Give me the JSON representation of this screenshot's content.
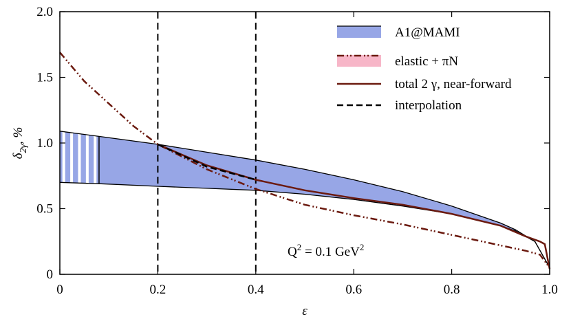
{
  "chart_data": {
    "type": "line",
    "xlabel": "ε",
    "ylabel": {
      "symbol": "δ",
      "subscript": "2γ",
      "unit": ", %"
    },
    "annotation": [
      "Q",
      "2",
      " = 0.1 GeV",
      "2"
    ],
    "xlim": [
      0,
      1
    ],
    "ylim": [
      0,
      2
    ],
    "xticks": [
      0,
      0.2,
      0.4,
      0.6,
      0.8,
      {
        "value": 1,
        "label": "1.0"
      }
    ],
    "yticks": [
      0,
      0.5,
      {
        "value": 1,
        "label": "1.0"
      },
      1.5,
      {
        "value": 2,
        "label": "2.0"
      }
    ],
    "vlines": [
      0.2,
      0.4
    ],
    "legend": "upper right",
    "series": [
      {
        "name": "A1@MAMI",
        "kind": "band",
        "color": "#97a6e6",
        "x": [
          0,
          0.08,
          0.2,
          0.3,
          0.4,
          0.5,
          0.6,
          0.7,
          0.8,
          0.9,
          0.93,
          0.97,
          1.0
        ],
        "upper": [
          1.09,
          1.05,
          0.99,
          0.93,
          0.87,
          0.8,
          0.72,
          0.63,
          0.52,
          0.39,
          0.34,
          0.25,
          0.05
        ],
        "lower": [
          0.7,
          0.69,
          0.67,
          0.655,
          0.64,
          0.61,
          0.57,
          0.52,
          0.46,
          0.37,
          0.33,
          0.25,
          0.05
        ]
      },
      {
        "name": "elastic + πN",
        "kind": "line",
        "color": "#6b1a0f",
        "dash": "10 4 2 3 2 4",
        "legend_fill": "#f7b6c8",
        "x": [
          0,
          0.05,
          0.1,
          0.15,
          0.2,
          0.3,
          0.4,
          0.5,
          0.6,
          0.7,
          0.8,
          0.9,
          0.95,
          0.98,
          1.0
        ],
        "values": [
          1.69,
          1.47,
          1.3,
          1.13,
          0.99,
          0.8,
          0.65,
          0.53,
          0.45,
          0.38,
          0.3,
          0.22,
          0.18,
          0.15,
          0.05
        ]
      },
      {
        "name": "total 2 γ, near-forward",
        "kind": "line",
        "color": "#6b1a0f",
        "dash": "none",
        "x": [
          0.2,
          0.3,
          0.4,
          0.5,
          0.6,
          0.7,
          0.8,
          0.9,
          0.95,
          0.98,
          0.99,
          1.0
        ],
        "values": [
          0.99,
          0.83,
          0.72,
          0.64,
          0.58,
          0.53,
          0.46,
          0.37,
          0.29,
          0.25,
          0.23,
          0.04
        ]
      },
      {
        "name": "interpolation",
        "kind": "line",
        "color": "#000000",
        "dash": "9 5",
        "x": [
          0.2,
          0.3,
          0.4
        ],
        "values": [
          0.99,
          0.82,
          0.72
        ]
      }
    ]
  }
}
